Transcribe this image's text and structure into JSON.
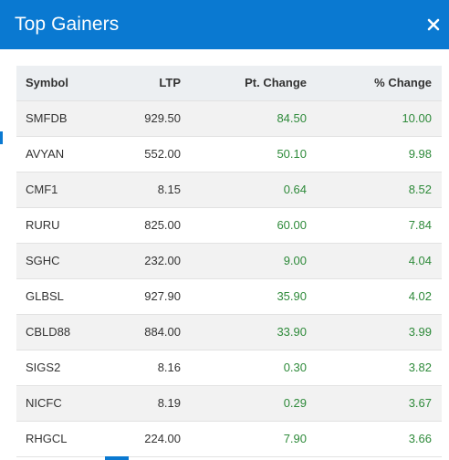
{
  "modal": {
    "title": "Top Gainers",
    "close_icon": "close-icon"
  },
  "colors": {
    "header_bg": "#0a79d1",
    "positive": "#2e8a3a"
  },
  "table": {
    "headers": [
      "Symbol",
      "LTP",
      "Pt. Change",
      "% Change"
    ],
    "rows": [
      [
        "SMFDB",
        "929.50",
        "84.50",
        "10.00"
      ],
      [
        "AVYAN",
        "552.00",
        "50.10",
        "9.98"
      ],
      [
        "CMF1",
        "8.15",
        "0.64",
        "8.52"
      ],
      [
        "RURU",
        "825.00",
        "60.00",
        "7.84"
      ],
      [
        "SGHC",
        "232.00",
        "9.00",
        "4.04"
      ],
      [
        "GLBSL",
        "927.90",
        "35.90",
        "4.02"
      ],
      [
        "CBLD88",
        "884.00",
        "33.90",
        "3.99"
      ],
      [
        "SIGS2",
        "8.16",
        "0.30",
        "3.82"
      ],
      [
        "NICFC",
        "8.19",
        "0.29",
        "3.67"
      ],
      [
        "RHGCL",
        "224.00",
        "7.90",
        "3.66"
      ]
    ]
  }
}
